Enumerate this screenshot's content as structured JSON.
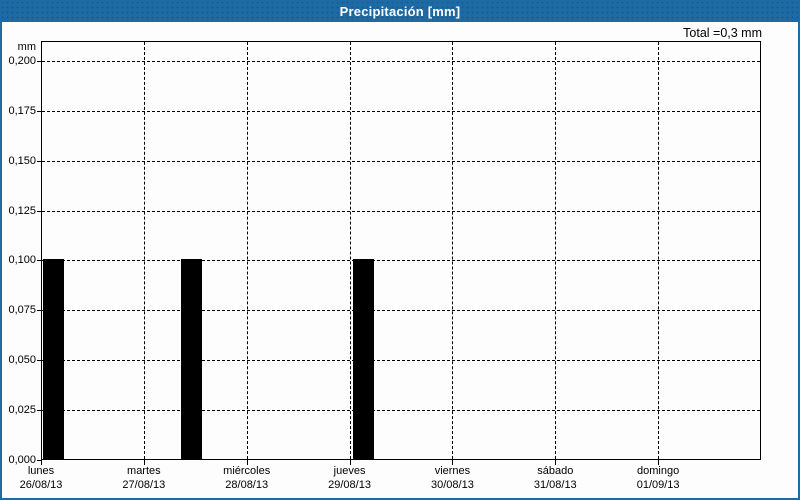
{
  "header": {
    "title": "Precipitación [mm]"
  },
  "colors": {
    "accent_blue": "#1d6aa5",
    "grid": "#000000",
    "bar": "#000000",
    "background": "#fdfdfd",
    "title_text": "#ffffff"
  },
  "chart_data": {
    "type": "bar",
    "title": "Precipitación [mm]",
    "ylabel": "mm",
    "total_label": "Total =0,3 mm",
    "total_mm": 0.3,
    "ylim": [
      0,
      0.21
    ],
    "grid": "dashed",
    "legend": "none",
    "yticks": [
      {
        "value": 0.2,
        "label": "0,200"
      },
      {
        "value": 0.175,
        "label": "0,175"
      },
      {
        "value": 0.15,
        "label": "0,150"
      },
      {
        "value": 0.125,
        "label": "0,125"
      },
      {
        "value": 0.1,
        "label": "0,100"
      },
      {
        "value": 0.075,
        "label": "0,075"
      },
      {
        "value": 0.05,
        "label": "0,050"
      },
      {
        "value": 0.025,
        "label": "0,025"
      },
      {
        "value": 0.0,
        "label": "0,000"
      }
    ],
    "categories": [
      {
        "day": "lunes",
        "date": "26/08/13"
      },
      {
        "day": "martes",
        "date": "27/08/13"
      },
      {
        "day": "miércoles",
        "date": "28/08/13"
      },
      {
        "day": "jueves",
        "date": "29/08/13"
      },
      {
        "day": "viernes",
        "date": "30/08/13"
      },
      {
        "day": "sábado",
        "date": "31/08/13"
      },
      {
        "day": "domingo",
        "date": "01/09/13"
      }
    ],
    "bars": [
      {
        "day": "lunes",
        "date": "26/08/13",
        "value_mm": 0.1,
        "value_label": "0,100",
        "x_frac": 0.0015,
        "width_frac": 0.0292
      },
      {
        "day": "martes",
        "date": "27/08/13",
        "value_mm": 0.1,
        "value_label": "0,100",
        "x_frac": 0.193,
        "width_frac": 0.0292
      },
      {
        "day": "jueves",
        "date": "29/08/13",
        "value_mm": 0.1,
        "value_label": "0,100",
        "x_frac": 0.432,
        "width_frac": 0.0292
      }
    ],
    "bar_color": "#000000"
  }
}
